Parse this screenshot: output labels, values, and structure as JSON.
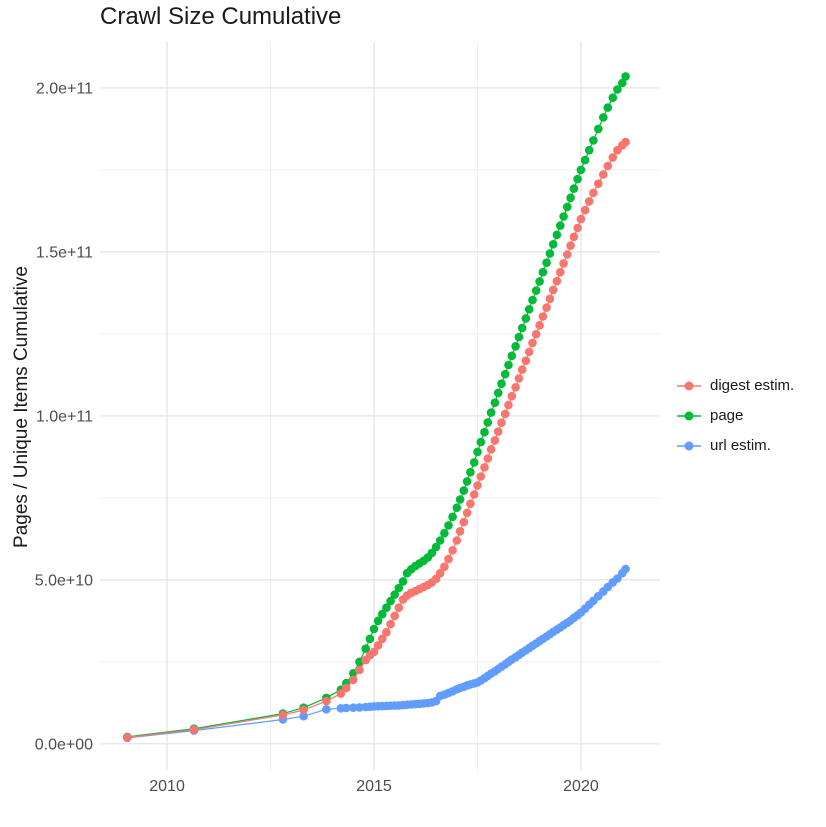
{
  "chart_data": {
    "type": "line",
    "title": "Crawl Size Cumulative",
    "xlabel": "",
    "ylabel": "Pages / Unique Items Cumulative",
    "values_unit": "billions (1e9 items)",
    "xlim": [
      2008.38,
      2021.91
    ],
    "ylim_billions": [
      -8,
      214
    ],
    "grid": true,
    "legend_position": "right",
    "x_ticks": {
      "values": [
        2010,
        2015,
        2020
      ],
      "labels": [
        "2010",
        "2015",
        "2020"
      ]
    },
    "x_minor_ticks": [
      2012.5,
      2017.5
    ],
    "y_ticks": {
      "values_billions": [
        0,
        50,
        100,
        150,
        200
      ],
      "labels": [
        "0.0e+00",
        "5.0e+10",
        "1.0e+11",
        "1.5e+11",
        "2.0e+11"
      ]
    },
    "y_minor_ticks_billions": [
      25,
      75,
      125,
      175
    ],
    "x_years": [
      2009.04,
      2010.65,
      2012.8,
      2013.3,
      2013.85,
      2014.2,
      2014.33,
      2014.5,
      2014.65,
      2014.8,
      2014.9,
      2015.0,
      2015.1,
      2015.2,
      2015.3,
      2015.4,
      2015.5,
      2015.6,
      2015.7,
      2015.8,
      2015.9,
      2016.0,
      2016.1,
      2016.2,
      2016.3,
      2016.4,
      2016.5,
      2016.6,
      2016.7,
      2016.8,
      2016.9,
      2017.0,
      2017.08,
      2017.17,
      2017.25,
      2017.33,
      2017.42,
      2017.5,
      2017.58,
      2017.67,
      2017.75,
      2017.83,
      2017.92,
      2018.0,
      2018.08,
      2018.17,
      2018.25,
      2018.33,
      2018.42,
      2018.5,
      2018.58,
      2018.67,
      2018.75,
      2018.83,
      2018.92,
      2019.0,
      2019.08,
      2019.17,
      2019.25,
      2019.33,
      2019.42,
      2019.5,
      2019.58,
      2019.67,
      2019.75,
      2019.83,
      2019.92,
      2020.0,
      2020.1,
      2020.2,
      2020.3,
      2020.42,
      2020.54,
      2020.65,
      2020.77,
      2020.88,
      2021.0,
      2021.08
    ],
    "series": [
      {
        "name": "digest estim.",
        "color": "#F8766D",
        "values_billions": [
          1.9,
          4.3,
          8.8,
          10.3,
          13.0,
          15.3,
          17.0,
          19.5,
          22.5,
          25.5,
          27.0,
          28.0,
          30.0,
          32.0,
          34.0,
          36.5,
          39.0,
          41.5,
          44.0,
          45.2,
          46.0,
          46.6,
          47.2,
          47.8,
          48.4,
          49.2,
          50.3,
          52.0,
          54.0,
          56.3,
          59.0,
          62.0,
          64.8,
          67.6,
          70.4,
          73.2,
          76.0,
          78.8,
          81.5,
          84.3,
          87.0,
          89.8,
          92.5,
          95.2,
          97.9,
          100.6,
          103.3,
          106.0,
          108.7,
          111.4,
          114.1,
          116.8,
          119.5,
          122.2,
          124.9,
          127.6,
          130.3,
          133.0,
          135.7,
          138.4,
          141.1,
          143.8,
          146.5,
          149.2,
          151.9,
          154.6,
          157.3,
          160.0,
          162.7,
          165.4,
          168.0,
          170.8,
          173.6,
          176.2,
          178.8,
          181.0,
          182.5,
          183.5
        ]
      },
      {
        "name": "page",
        "color": "#00BA38",
        "values_billions": [
          2.1,
          4.6,
          9.2,
          11.0,
          14.0,
          16.5,
          18.5,
          21.5,
          25.0,
          29.0,
          32.0,
          35.0,
          37.5,
          39.5,
          41.5,
          43.5,
          45.5,
          47.5,
          49.5,
          52.0,
          53.2,
          54.2,
          55.0,
          55.8,
          56.8,
          58.2,
          60.0,
          62.0,
          64.2,
          66.6,
          69.2,
          72.0,
          74.5,
          77.2,
          80.0,
          82.8,
          85.8,
          89.0,
          92.0,
          95.0,
          98.0,
          101.0,
          104.0,
          107.0,
          109.8,
          112.7,
          115.5,
          118.3,
          121.2,
          124.0,
          126.8,
          129.7,
          132.5,
          135.3,
          138.2,
          141.0,
          143.8,
          146.7,
          149.5,
          152.3,
          155.2,
          158.0,
          160.8,
          163.7,
          166.5,
          169.3,
          172.2,
          175.0,
          178.0,
          181.0,
          184.0,
          187.5,
          191.0,
          194.0,
          197.0,
          199.5,
          201.5,
          203.5
        ]
      },
      {
        "name": "url estim.",
        "color": "#619CFF",
        "values_billions": [
          1.8,
          4.0,
          7.4,
          8.4,
          10.5,
          10.8,
          10.9,
          11.0,
          11.1,
          11.2,
          11.3,
          11.4,
          11.45,
          11.5,
          11.55,
          11.6,
          11.65,
          11.7,
          11.8,
          11.9,
          12.0,
          12.1,
          12.2,
          12.3,
          12.4,
          12.6,
          13.0,
          14.6,
          15.0,
          15.5,
          16.0,
          16.6,
          17.0,
          17.4,
          17.8,
          18.1,
          18.4,
          18.7,
          19.3,
          20.0,
          20.7,
          21.4,
          22.1,
          22.8,
          23.5,
          24.2,
          25.0,
          25.7,
          26.4,
          27.1,
          27.8,
          28.5,
          29.2,
          29.9,
          30.6,
          31.3,
          32.0,
          32.7,
          33.4,
          34.1,
          34.8,
          35.5,
          36.2,
          36.9,
          37.6,
          38.4,
          39.2,
          40.0,
          41.2,
          42.4,
          43.6,
          45.0,
          46.4,
          47.8,
          49.2,
          50.4,
          52.0,
          53.3
        ]
      }
    ]
  }
}
